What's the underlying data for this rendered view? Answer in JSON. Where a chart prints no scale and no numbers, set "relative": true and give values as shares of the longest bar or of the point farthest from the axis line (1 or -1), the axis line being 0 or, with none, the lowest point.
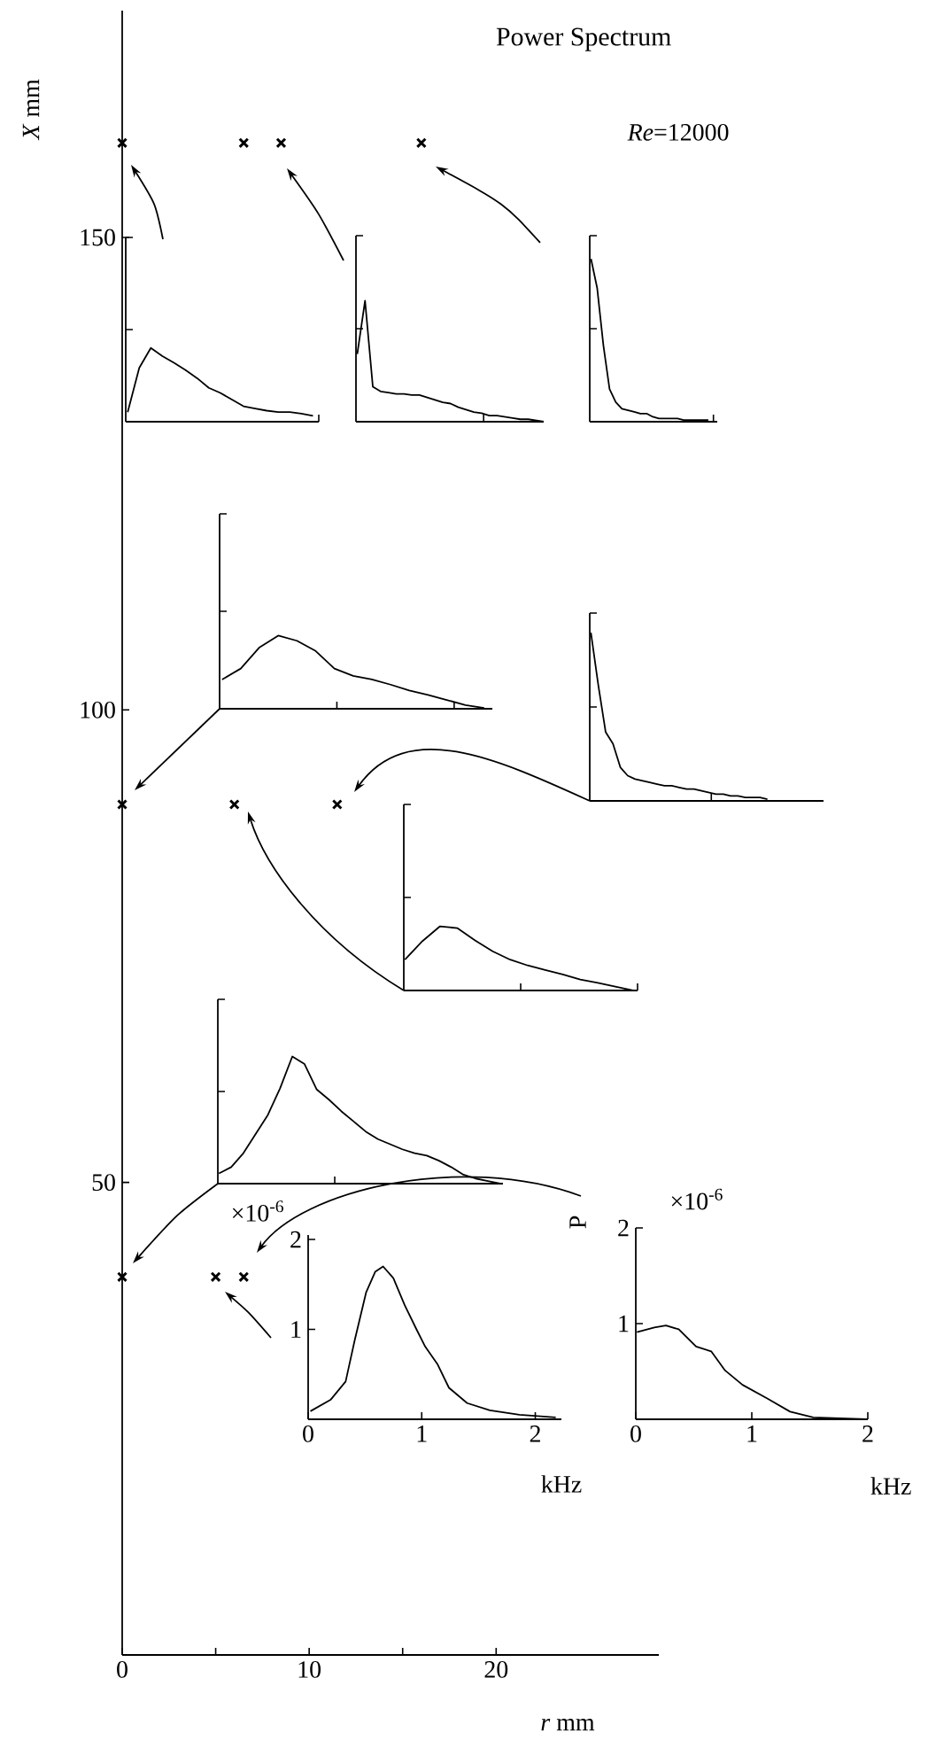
{
  "chart_data": [
    {
      "type": "scatter",
      "title": "Power Spectrum",
      "xlabel": "*r* mm",
      "ylabel": "*X* mm",
      "annotations": [
        "*Re*=12000"
      ],
      "marker": "cross",
      "color": "#000000",
      "x": [
        0,
        6.5,
        8.5,
        16,
        0,
        6,
        11.5,
        0,
        5,
        6.5
      ],
      "values": [
        160,
        160,
        160,
        160,
        90,
        90,
        90,
        40,
        40,
        40
      ],
      "xlim": [
        0,
        28.7
      ],
      "ylim": [
        0,
        174
      ],
      "xticks": [
        0,
        {
          "value": 5,
          "label": null
        },
        10,
        {
          "value": 15,
          "label": null
        },
        20
      ],
      "yticks": [
        50,
        100,
        150
      ]
    },
    {
      "type": "line",
      "color": "#000000",
      "relative": true,
      "categories": [
        null,
        null,
        null,
        null,
        null,
        null,
        null,
        null,
        null,
        null,
        null,
        null,
        null,
        null,
        null,
        null,
        null
      ],
      "values": [
        0.13,
        0.73,
        1,
        0.89,
        0.8,
        0.7,
        0.59,
        0.46,
        0.39,
        0.3,
        0.21,
        0.18,
        0.15,
        0.13,
        0.13,
        0.11,
        0.08
      ]
    },
    {
      "type": "line",
      "color": "#000000",
      "relative": true,
      "categories": [
        null,
        null,
        null,
        null,
        null,
        null,
        null,
        null,
        null,
        null,
        null,
        null,
        null,
        null,
        null,
        null,
        null,
        null,
        null,
        null,
        null,
        null,
        null,
        null,
        null
      ],
      "values": [
        0.56,
        1,
        0.29,
        0.25,
        0.24,
        0.23,
        0.23,
        0.22,
        0.22,
        0.2,
        0.18,
        0.16,
        0.15,
        0.12,
        0.1,
        0.08,
        0.07,
        0.05,
        0.05,
        0.04,
        0.03,
        0.02,
        0.02,
        0.01,
        0
      ]
    },
    {
      "type": "line",
      "color": "#000000",
      "relative": true,
      "categories": [
        null,
        null,
        null,
        null,
        null,
        null,
        null,
        null,
        null,
        null,
        null,
        null,
        null,
        null,
        null,
        null,
        null,
        null,
        null,
        null
      ],
      "values": [
        1,
        0.82,
        0.47,
        0.2,
        0.12,
        0.08,
        0.07,
        0.06,
        0.05,
        0.05,
        0.03,
        0.02,
        0.02,
        0.02,
        0.02,
        0.01,
        0.01,
        0.01,
        0.01,
        0.01
      ]
    },
    {
      "type": "line",
      "color": "#000000",
      "relative": true,
      "categories": [
        null,
        null,
        null,
        null,
        null,
        null,
        null,
        null,
        null,
        null,
        null,
        null,
        null,
        null,
        null
      ],
      "values": [
        0.4,
        0.55,
        0.84,
        1,
        0.93,
        0.79,
        0.55,
        0.45,
        0.4,
        0.33,
        0.25,
        0.19,
        0.12,
        0.05,
        0.01
      ]
    },
    {
      "type": "line",
      "color": "#000000",
      "relative": true,
      "categories": [
        null,
        null,
        null,
        null,
        null,
        null,
        null,
        null,
        null,
        null,
        null,
        null,
        null,
        null,
        null,
        null,
        null,
        null,
        null,
        null,
        null,
        null,
        null,
        null,
        null
      ],
      "values": [
        1,
        0.69,
        0.41,
        0.34,
        0.2,
        0.15,
        0.13,
        0.12,
        0.11,
        0.1,
        0.09,
        0.09,
        0.08,
        0.07,
        0.07,
        0.06,
        0.05,
        0.04,
        0.04,
        0.03,
        0.03,
        0.02,
        0.02,
        0.02,
        0.01
      ]
    },
    {
      "type": "line",
      "color": "#000000",
      "relative": true,
      "categories": [
        null,
        null,
        null,
        null,
        null,
        null,
        null,
        null,
        null,
        null,
        null,
        null,
        null,
        null
      ],
      "values": [
        0.48,
        0.77,
        1,
        0.97,
        0.78,
        0.61,
        0.48,
        0.39,
        0.32,
        0.25,
        0.17,
        0.12,
        0.06,
        0
      ]
    },
    {
      "type": "line",
      "color": "#000000",
      "relative": true,
      "categories": [
        null,
        null,
        null,
        null,
        null,
        null,
        null,
        null,
        null,
        null,
        null,
        null,
        null,
        null,
        null,
        null,
        null,
        null,
        null,
        null,
        null,
        null,
        null,
        null
      ],
      "values": [
        0.08,
        0.13,
        0.24,
        0.39,
        0.54,
        0.75,
        1,
        0.94,
        0.74,
        0.66,
        0.57,
        0.49,
        0.41,
        0.35,
        0.31,
        0.27,
        0.24,
        0.22,
        0.18,
        0.13,
        0.07,
        0.04,
        0.02,
        0
      ]
    },
    {
      "type": "line",
      "color": "#000000",
      "xlabel": "kHz",
      "annotations": [
        "×10$^{-6}$"
      ],
      "xlim": [
        0,
        2.23
      ],
      "ylim": [
        0,
        2.05
      ],
      "xticks": [
        0,
        1,
        2
      ],
      "yticks": [
        1,
        2
      ],
      "x": [
        0.02,
        0.2,
        0.33,
        0.41,
        0.51,
        0.59,
        0.66,
        0.75,
        0.85,
        0.95,
        1.03,
        1.14,
        1.24,
        1.4,
        1.6,
        1.86,
        2.18
      ],
      "values": [
        0.09,
        0.22,
        0.42,
        0.88,
        1.41,
        1.64,
        1.7,
        1.57,
        1.27,
        1.01,
        0.81,
        0.61,
        0.35,
        0.18,
        0.1,
        0.05,
        0.02
      ]
    },
    {
      "type": "line",
      "color": "#000000",
      "xlabel": "kHz",
      "ylabel": "P",
      "annotations": [
        "×10$^{-6}$"
      ],
      "xlim": [
        0,
        2
      ],
      "ylim": [
        0,
        2
      ],
      "xticks": [
        0,
        1,
        2
      ],
      "yticks": [
        1,
        2
      ],
      "x": [
        0.01,
        0.16,
        0.26,
        0.37,
        0.52,
        0.65,
        0.77,
        0.92,
        1.13,
        1.33,
        1.53,
        1.99
      ],
      "values": [
        0.91,
        0.96,
        0.98,
        0.94,
        0.76,
        0.71,
        0.51,
        0.36,
        0.22,
        0.08,
        0.02,
        0
      ]
    }
  ]
}
